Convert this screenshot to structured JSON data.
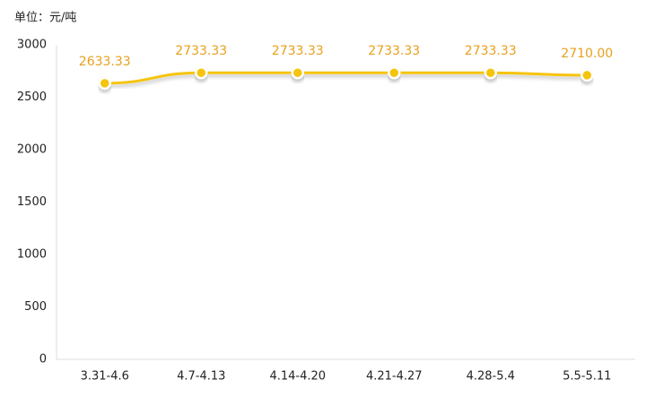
{
  "chart_data": {
    "type": "line",
    "y_label": "单位：元/吨",
    "categories": [
      "3.31-4.6",
      "4.7-4.13",
      "4.14-4.20",
      "4.21-4.27",
      "4.28-5.4",
      "5.5-5.11"
    ],
    "values": [
      2633.33,
      2733.33,
      2733.33,
      2733.33,
      2733.33,
      2710
    ],
    "value_labels": [
      "2633.33",
      "2733.33",
      "2733.33",
      "2733.33",
      "2733.33",
      "2710.00"
    ],
    "color": "#f6c40e",
    "ylim": [
      0,
      3000
    ],
    "yticks": [
      0,
      500,
      1000,
      1500,
      2000,
      2500,
      3000
    ],
    "grid": false
  }
}
